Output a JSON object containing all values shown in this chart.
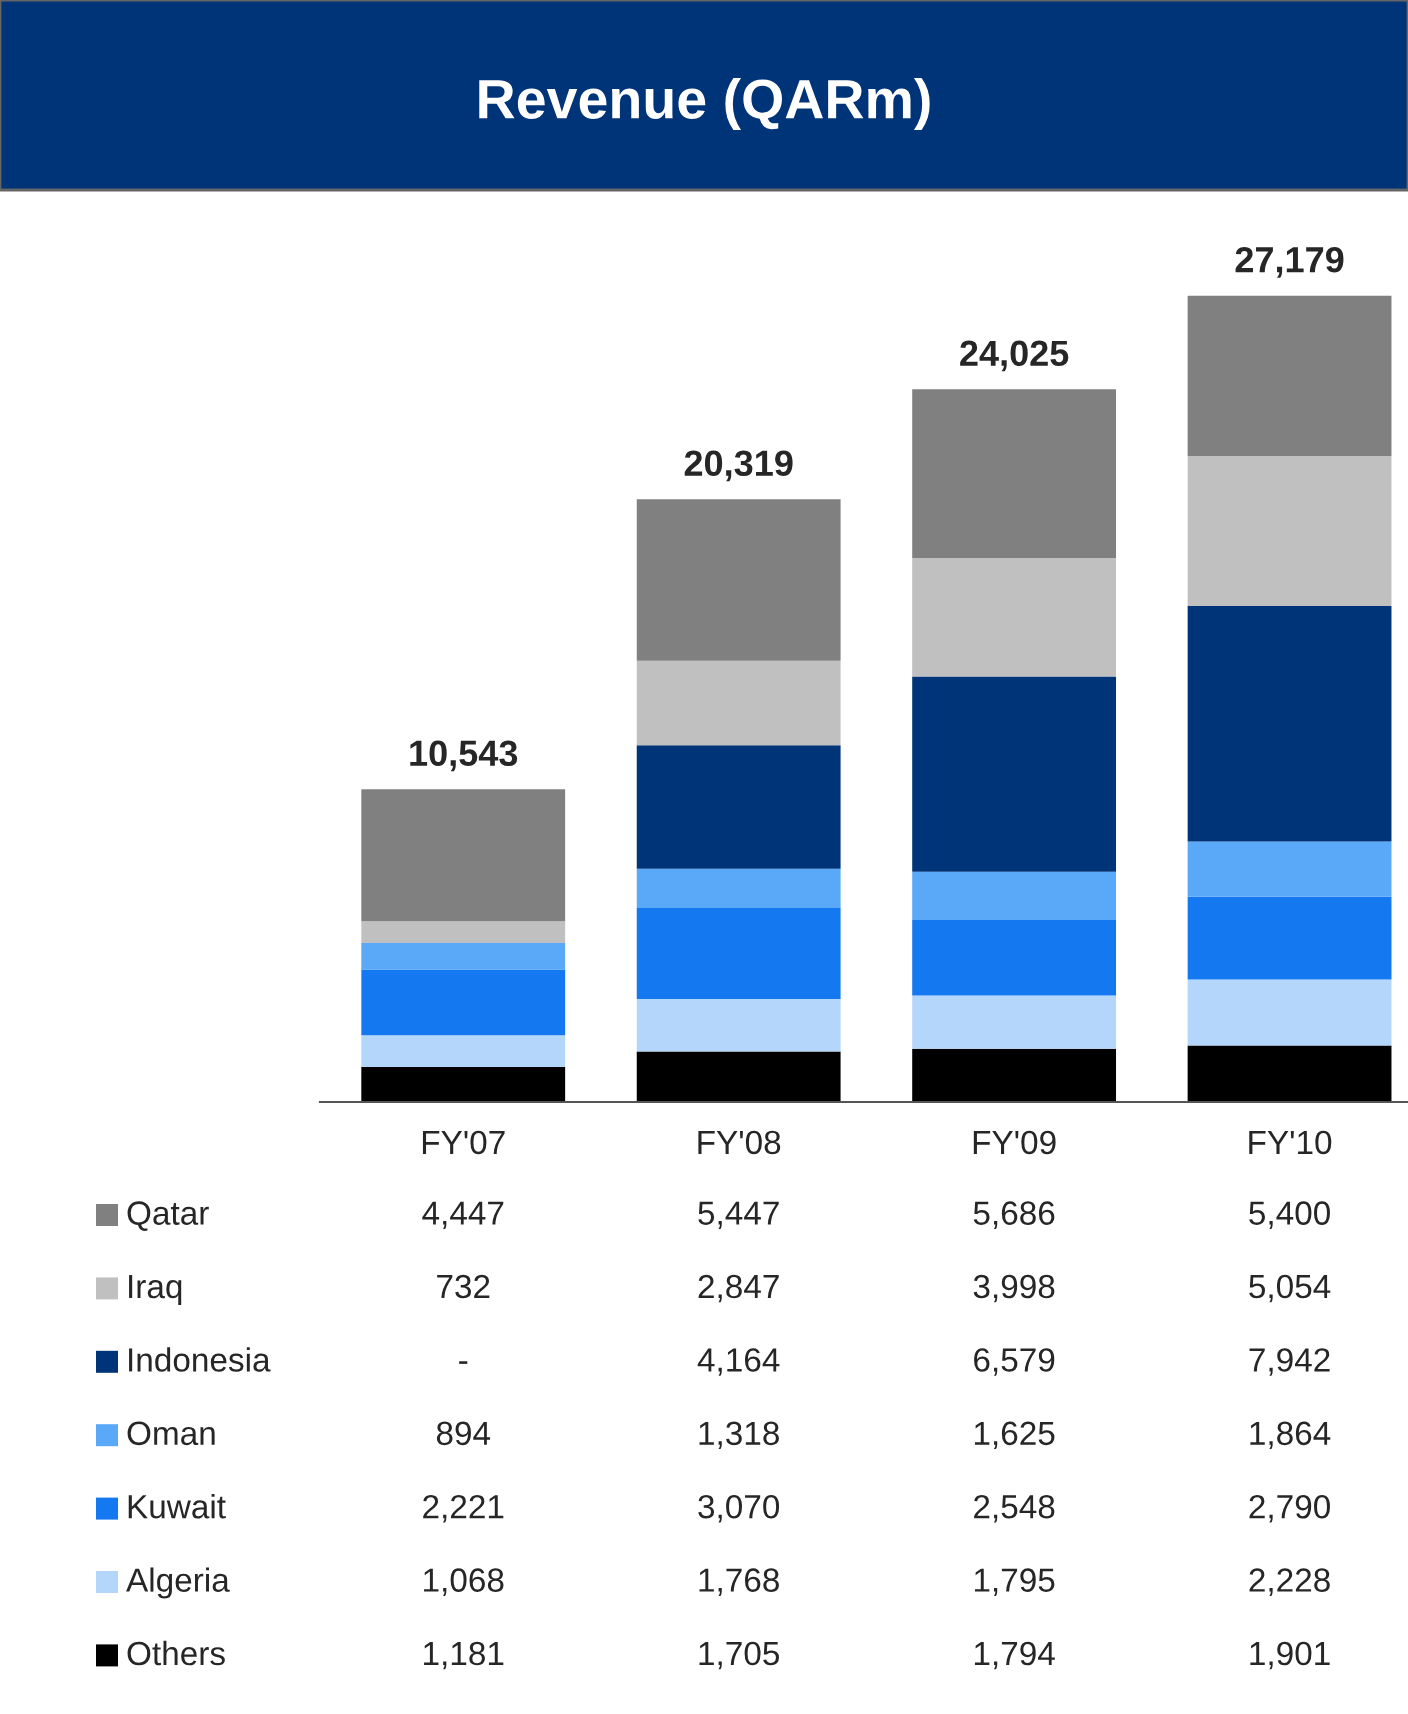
{
  "chart_data": {
    "type": "bar",
    "title": "Revenue (QARm)",
    "stacked": true,
    "legend": "bottom",
    "data_labels": true,
    "categories": [
      "FY'07",
      "FY'08",
      "FY'09",
      "FY'10"
    ],
    "totals": [
      "10,543",
      "20,319",
      "24,025",
      "27,179"
    ],
    "series": [
      {
        "name": "Others",
        "color": "#000000",
        "values": [
          1181,
          1705,
          1794,
          1901
        ],
        "value_labels": [
          "1,181",
          "1,705",
          "1,794",
          "1,901"
        ]
      },
      {
        "name": "Algeria",
        "color": "#b4d6fa",
        "values": [
          1068,
          1768,
          1795,
          2228
        ],
        "value_labels": [
          "1,068",
          "1,768",
          "1,795",
          "2,228"
        ]
      },
      {
        "name": "Kuwait",
        "color": "#1478f0",
        "values": [
          2221,
          3070,
          2548,
          2790
        ],
        "value_labels": [
          "2,221",
          "3,070",
          "2,548",
          "2,790"
        ]
      },
      {
        "name": "Oman",
        "color": "#5aa8f8",
        "values": [
          894,
          1318,
          1625,
          1864
        ],
        "value_labels": [
          "894",
          "1,318",
          "1,625",
          "1,864"
        ]
      },
      {
        "name": "Indonesia",
        "color": "#003478",
        "values": [
          null,
          4164,
          6579,
          7942
        ],
        "value_labels": [
          "-",
          "4,164",
          "6,579",
          "7,942"
        ]
      },
      {
        "name": "Iraq",
        "color": "#c0c0c0",
        "values": [
          732,
          2847,
          3998,
          5054
        ],
        "value_labels": [
          "732",
          "2,847",
          "3,998",
          "5,054"
        ]
      },
      {
        "name": "Qatar",
        "color": "#808080",
        "values": [
          4447,
          5447,
          5686,
          5400
        ],
        "value_labels": [
          "4,447",
          "5,447",
          "5,686",
          "5,400"
        ]
      }
    ]
  }
}
